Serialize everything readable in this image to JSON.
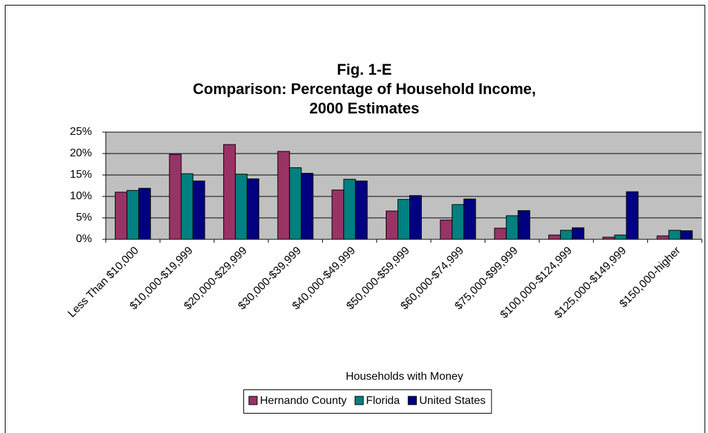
{
  "chart_data": {
    "type": "bar",
    "title": [
      "Fig. 1-E",
      "Comparison: Percentage of Household Income,",
      "2000 Estimates"
    ],
    "x_label": "Households with Money",
    "categories": [
      "Less Than $10,000",
      "$10,000-$19,999",
      "$20,000-$29,999",
      "$30,000-$39,999",
      "$40,000-$49,999",
      "$50,000-$59,999",
      "$60,000-$74,999",
      "$75,000-$99,999",
      "$100,000-$124,999",
      "$125,000-$149,999",
      "$150,000-higher"
    ],
    "series": [
      {
        "name": "Hernando County",
        "color": "#993366",
        "values": [
          11,
          19.8,
          22.1,
          20.5,
          11.5,
          6.6,
          4.5,
          2.6,
          1,
          0.5,
          0.8
        ]
      },
      {
        "name": "Florida",
        "color": "#008080",
        "values": [
          11.4,
          15.3,
          15.2,
          16.7,
          14,
          9.3,
          8.1,
          5.5,
          2.1,
          1,
          2.1
        ]
      },
      {
        "name": "United States",
        "color": "#000080",
        "values": [
          11.9,
          13.6,
          14.1,
          15.4,
          13.6,
          10.2,
          9.4,
          6.7,
          2.7,
          11.1,
          2
        ]
      }
    ],
    "ylim": [
      0,
      25
    ],
    "yticks": [
      {
        "value": 0,
        "label": "0%"
      },
      {
        "value": 5,
        "label": "5%"
      },
      {
        "value": 10,
        "label": "10%"
      },
      {
        "value": 15,
        "label": "15%"
      },
      {
        "value": 20,
        "label": "20%"
      },
      {
        "value": 25,
        "label": "25%"
      }
    ],
    "grid": true,
    "legend": "bottom"
  }
}
